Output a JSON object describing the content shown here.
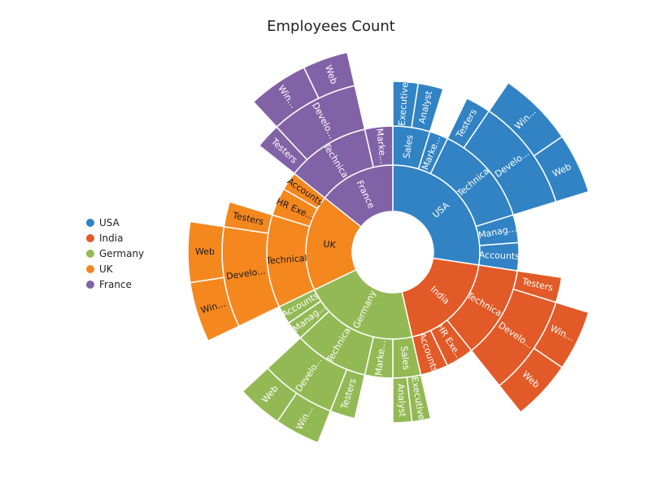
{
  "chart_data": {
    "type": "sunburst",
    "title": "Employees Count",
    "legend_position": "left",
    "colors": {
      "USA": "#3183c4",
      "India": "#e25a27",
      "Germany": "#93b954",
      "UK": "#f5871f",
      "France": "#8262a6"
    },
    "legend": [
      "USA",
      "India",
      "Germany",
      "UK",
      "France"
    ],
    "root": [
      {
        "name": "USA",
        "label": "USA",
        "value": 23,
        "children": [
          {
            "name": "Sales",
            "label": "Sales",
            "value": 4,
            "children": [
              {
                "name": "Executive",
                "label": "Executive",
                "value": 2
              },
              {
                "name": "Analyst",
                "label": "Analyst",
                "value": 2
              }
            ]
          },
          {
            "name": "Marketing",
            "label": "Marke...",
            "value": 2
          },
          {
            "name": "Technical",
            "label": "Technica",
            "value": 11,
            "children": [
              {
                "name": "Testers",
                "label": "Testers",
                "value": 2
              },
              {
                "name": "Developers",
                "label": "Develo...",
                "value": 9,
                "children": [
                  {
                    "name": "Windows",
                    "label": "Win...",
                    "value": 5
                  },
                  {
                    "name": "Web",
                    "label": "Web",
                    "value": 4
                  }
                ]
              }
            ]
          },
          {
            "name": "Management",
            "label": "Manag...",
            "value": 3
          },
          {
            "name": "Accounts",
            "label": "Accounts",
            "value": 3
          }
        ]
      },
      {
        "name": "India",
        "label": "India",
        "value": 16,
        "children": [
          {
            "name": "Technical",
            "label": "Technical",
            "value": 10,
            "children": [
              {
                "name": "Testers",
                "label": "Testers",
                "value": 2
              },
              {
                "name": "Developers",
                "label": "Develo...",
                "value": 8,
                "children": [
                  {
                    "name": "Windows",
                    "label": "Win...",
                    "value": 4
                  },
                  {
                    "name": "Web",
                    "label": "Web",
                    "value": 4
                  }
                ]
              }
            ]
          },
          {
            "name": "HR Executives",
            "label": "HR Exe...",
            "value": 3
          },
          {
            "name": "Accounts",
            "label": "Accounts",
            "value": 3
          }
        ]
      },
      {
        "name": "Germany",
        "label": "Germany",
        "value": 18,
        "children": [
          {
            "name": "Sales",
            "label": "Sales",
            "value": 3,
            "children": [
              {
                "name": "Executive",
                "label": "Executive",
                "value": 1.5
              },
              {
                "name": "Analyst",
                "label": "Analyst",
                "value": 1.5
              }
            ]
          },
          {
            "name": "Marketing",
            "label": "Marke...",
            "value": 3
          },
          {
            "name": "Technical",
            "label": "Technical",
            "value": 8,
            "children": [
              {
                "name": "Testers",
                "label": "Testers",
                "value": 2
              },
              {
                "name": "Developers",
                "label": "Develo...",
                "value": 6,
                "children": [
                  {
                    "name": "Windows",
                    "label": "Win...",
                    "value": 3
                  },
                  {
                    "name": "Web",
                    "label": "Web",
                    "value": 3
                  }
                ]
              }
            ]
          },
          {
            "name": "Management",
            "label": "Manag...",
            "value": 2
          },
          {
            "name": "Accounts",
            "label": "Accounts",
            "value": 2
          }
        ]
      },
      {
        "name": "UK",
        "label": "UK",
        "value": 15,
        "children": [
          {
            "name": "Technical",
            "label": "Technical",
            "value": 10,
            "children": [
              {
                "name": "Developers",
                "label": "Develo...",
                "value": 8,
                "children": [
                  {
                    "name": "Windows",
                    "label": "Win...",
                    "value": 4
                  },
                  {
                    "name": "Web",
                    "label": "Web",
                    "value": 4
                  }
                ]
              },
              {
                "name": "Testers",
                "label": "Testers",
                "value": 2
              }
            ]
          },
          {
            "name": "HR Executives",
            "label": "HR Exe...",
            "value": 3
          },
          {
            "name": "Accounts",
            "label": "Accounts",
            "value": 2
          }
        ]
      },
      {
        "name": "France",
        "label": "France",
        "value": 12,
        "children": [
          {
            "name": "Technical",
            "label": "Technical",
            "value": 9,
            "children": [
              {
                "name": "Testers",
                "label": "Testers",
                "value": 2
              },
              {
                "name": "Developers",
                "label": "Develo...",
                "value": 7,
                "children": [
                  {
                    "name": "Windows",
                    "label": "Win...",
                    "value": 4
                  },
                  {
                    "name": "Web",
                    "label": "Web",
                    "value": 3
                  }
                ]
              }
            ]
          },
          {
            "name": "Marketing",
            "label": "Marke...",
            "value": 3
          }
        ]
      }
    ]
  }
}
